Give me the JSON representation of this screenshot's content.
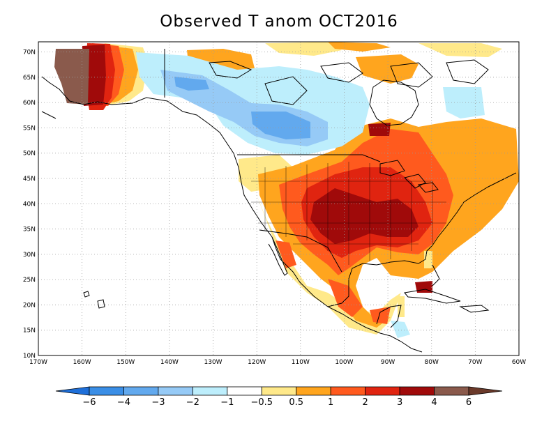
{
  "title": "Observed T anom OCT2016",
  "map": {
    "lon_range": [
      -170,
      -60
    ],
    "lat_range": [
      10,
      72
    ],
    "lon_ticks": [
      "170W",
      "160W",
      "150W",
      "140W",
      "130W",
      "120W",
      "110W",
      "100W",
      "90W",
      "80W",
      "70W",
      "60W"
    ],
    "lat_ticks": [
      "10N",
      "15N",
      "20N",
      "25N",
      "30N",
      "35N",
      "40N",
      "45N",
      "50N",
      "55N",
      "60N",
      "65N",
      "70N"
    ],
    "grid": true,
    "regions_highlighted": {
      "warm_core": "central and southern United States",
      "cold_core": "western Canada / Yukon and Northwest Territories",
      "very_warm": "western Alaska"
    }
  },
  "colorbar": {
    "labels": [
      "−6",
      "−4",
      "−3",
      "−2",
      "−1",
      "−0.5",
      "0.5",
      "1",
      "2",
      "3",
      "4",
      "6"
    ],
    "colors": [
      "#1e6fd9",
      "#3a8ee6",
      "#62a9ee",
      "#96caf6",
      "#bdeefc",
      "#ffffff",
      "#ffe98a",
      "#ffa51e",
      "#ff5a1e",
      "#e02410",
      "#a00a0a",
      "#8a5a4c",
      "#6b3a2a"
    ]
  }
}
